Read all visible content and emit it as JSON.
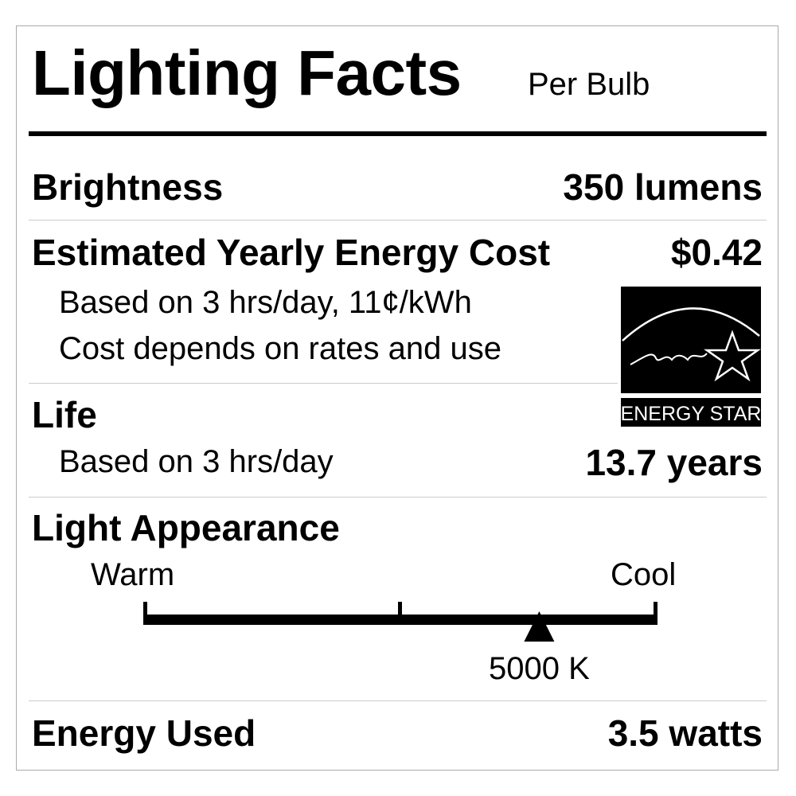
{
  "title": "Lighting Facts",
  "subtitle": "Per Bulb",
  "brightness": {
    "label": "Brightness",
    "value": "350 lumens"
  },
  "energy_cost": {
    "label": "Estimated Yearly Energy Cost",
    "value": "$0.42",
    "note1": "Based on 3 hrs/day, 11¢/kWh",
    "note2": "Cost depends on rates and use"
  },
  "life": {
    "label": "Life",
    "note": "Based on 3 hrs/day",
    "value": "13.7 years"
  },
  "light_appearance": {
    "label": "Light Appearance",
    "warm_label": "Warm",
    "cool_label": "Cool",
    "value": "5000 K",
    "position_fraction": 0.77
  },
  "energy_used": {
    "label": "Energy Used",
    "value": "3.5 watts"
  },
  "energy_star": {
    "script_text": "energy",
    "label": "ENERGY STAR"
  }
}
